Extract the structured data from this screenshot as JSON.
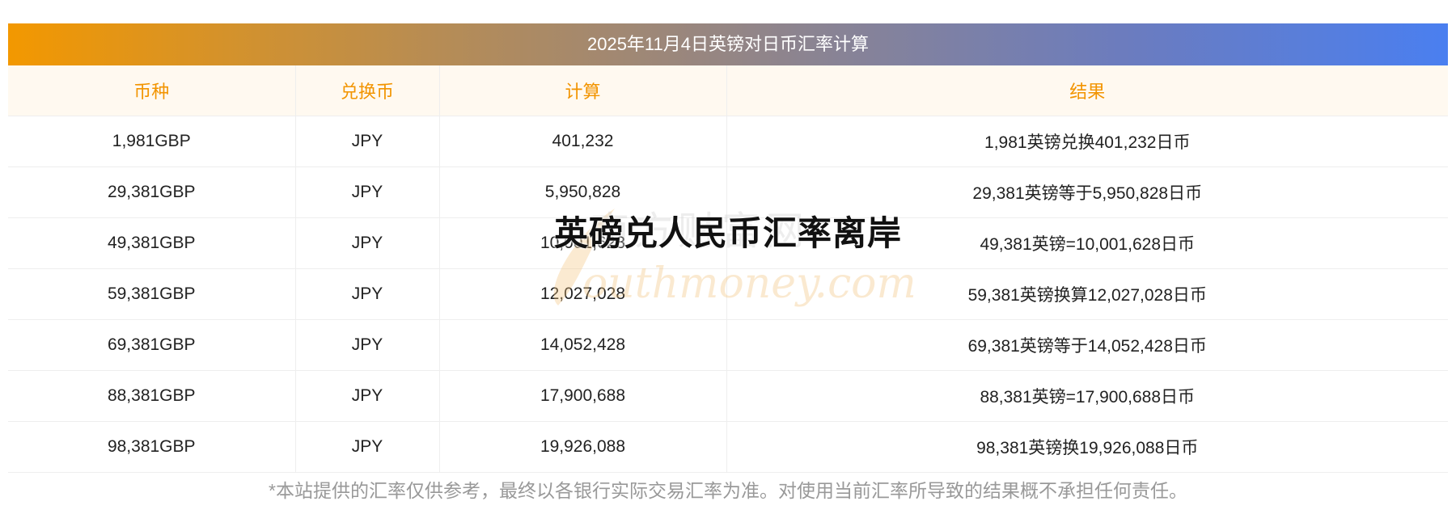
{
  "table": {
    "title": "2025年11月4日英镑对日币汇率计算",
    "headers": [
      "币种",
      "兑换币",
      "计算",
      "结果"
    ],
    "rows": [
      {
        "amount": "1,981GBP",
        "target": "JPY",
        "calc": "401,232",
        "result": "1,981英镑兑换401,232日币"
      },
      {
        "amount": "29,381GBP",
        "target": "JPY",
        "calc": "5,950,828",
        "result": "29,381英镑等于5,950,828日币"
      },
      {
        "amount": "49,381GBP",
        "target": "JPY",
        "calc": "10,001,628",
        "result": "49,381英镑=10,001,628日币"
      },
      {
        "amount": "59,381GBP",
        "target": "JPY",
        "calc": "12,027,028",
        "result": "59,381英镑换算12,027,028日币"
      },
      {
        "amount": "69,381GBP",
        "target": "JPY",
        "calc": "14,052,428",
        "result": "69,381英镑等于14,052,428日币"
      },
      {
        "amount": "88,381GBP",
        "target": "JPY",
        "calc": "17,900,688",
        "result": "88,381英镑=17,900,688日币"
      },
      {
        "amount": "98,381GBP",
        "target": "JPY",
        "calc": "19,926,088",
        "result": "98,381英镑换19,926,088日币"
      }
    ]
  },
  "footer": {
    "disclaimer": "*本站提供的汇率仅供参考，最终以各银行实际交易汇率为准。对使用当前汇率所导致的结果概不承担任何责任。"
  },
  "overlay": {
    "headline": "英磅兑人民币汇率离岸"
  },
  "watermark": {
    "cn_text": "南方财富网",
    "en_text": "outhmoney.com",
    "color": "#f3c27a"
  },
  "colors": {
    "header_text": "#f29400",
    "gradient_start": "#f39800",
    "gradient_end": "#4a7ff0"
  }
}
